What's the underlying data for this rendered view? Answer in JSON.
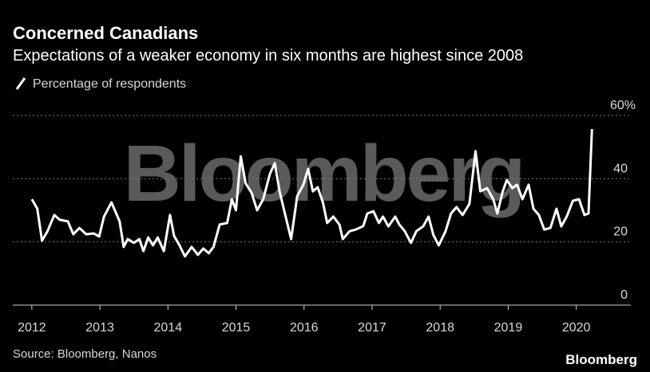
{
  "chart_data": {
    "type": "line",
    "title": "Concerned Canadians",
    "subtitle": "Expectations of a weaker economy in six months are highest since 2008",
    "source": "Source: Bloomberg, Nanos",
    "logo": "Bloomberg",
    "watermark": "Bloomberg",
    "x": [
      2012.0,
      2012.08,
      2012.15,
      2012.23,
      2012.33,
      2012.41,
      2012.53,
      2012.61,
      2012.7,
      2012.8,
      2012.91,
      2012.99,
      2013.06,
      2013.17,
      2013.29,
      2013.35,
      2013.41,
      2013.5,
      2013.58,
      2013.64,
      2013.71,
      2013.78,
      2013.85,
      2013.94,
      2014.03,
      2014.09,
      2014.17,
      2014.25,
      2014.35,
      2014.44,
      2014.52,
      2014.6,
      2014.67,
      2014.76,
      2014.87,
      2014.94,
      2015.0,
      2015.07,
      2015.14,
      2015.23,
      2015.31,
      2015.4,
      2015.5,
      2015.57,
      2015.64,
      2015.73,
      2015.81,
      2015.9,
      2015.99,
      2016.06,
      2016.13,
      2016.2,
      2016.28,
      2016.34,
      2016.43,
      2016.52,
      2016.57,
      2016.67,
      2016.76,
      2016.87,
      2016.93,
      2017.02,
      2017.1,
      2017.16,
      2017.24,
      2017.34,
      2017.4,
      2017.48,
      2017.57,
      2017.65,
      2017.75,
      2017.83,
      2017.9,
      2017.98,
      2018.08,
      2018.16,
      2018.24,
      2018.33,
      2018.43,
      2018.52,
      2018.59,
      2018.69,
      2018.78,
      2018.84,
      2018.92,
      2018.98,
      2019.06,
      2019.13,
      2019.21,
      2019.3,
      2019.37,
      2019.45,
      2019.53,
      2019.62,
      2019.71,
      2019.78,
      2019.86,
      2019.95,
      2020.04,
      2020.12,
      2020.18,
      2020.23
    ],
    "series": [
      {
        "name": "Percentage of respondents",
        "color": "#ffffff",
        "values": [
          33.5,
          30.5,
          20.4,
          23.4,
          28.5,
          27,
          26.5,
          22.4,
          24.4,
          22.4,
          22.7,
          21.7,
          28,
          32.5,
          26.5,
          18.4,
          20.9,
          19.7,
          20.9,
          17.1,
          21.4,
          18.9,
          21.4,
          17.1,
          28.5,
          21.9,
          18.9,
          15.4,
          18.4,
          15.9,
          17.9,
          16.4,
          18.4,
          25.5,
          26,
          33.5,
          30,
          47.1,
          38.6,
          35.5,
          30,
          33.5,
          41.6,
          44.9,
          36,
          28,
          20.9,
          34.5,
          38.1,
          43.1,
          36,
          37.3,
          32.3,
          26,
          28,
          25.5,
          20.9,
          23.4,
          23.9,
          25,
          29,
          29.7,
          26,
          28,
          24.9,
          28,
          25.5,
          23.4,
          19.7,
          23.4,
          24.9,
          28,
          22.2,
          18.9,
          23.4,
          29,
          31,
          28.5,
          32,
          48.7,
          36,
          37,
          33.5,
          29,
          36,
          39.6,
          37,
          38.1,
          33.5,
          38.1,
          30.5,
          28.5,
          23.9,
          24.4,
          30.5,
          24.9,
          28,
          33,
          33.5,
          28.5,
          29,
          55.7
        ]
      }
    ],
    "xlim": [
      2011.72,
      2020.45
    ],
    "xticks": [
      2012,
      2013,
      2014,
      2015,
      2016,
      2017,
      2018,
      2019,
      2020
    ],
    "ylim": [
      0,
      60
    ],
    "yticks": [
      0,
      20,
      40,
      {
        "value": 60,
        "label": "60%"
      }
    ],
    "grid": true
  }
}
